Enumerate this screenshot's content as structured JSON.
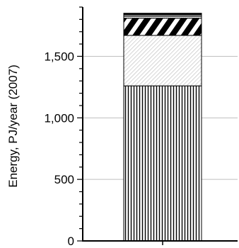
{
  "chart_data": {
    "type": "bar",
    "stacked": true,
    "categories": [
      ""
    ],
    "ylabel": "Energy, PJ/year (2007)",
    "ylim": [
      0,
      1900
    ],
    "y_ticks": [
      0,
      500,
      1000,
      1500
    ],
    "y_tick_labels": [
      "0",
      "500",
      "1,000",
      "1,500"
    ],
    "grid": "horizontal",
    "legend": "none",
    "series": [
      {
        "values": [
          1260
        ],
        "pattern": "vertical-lines"
      },
      {
        "values": [
          410
        ],
        "pattern": "fine-diagonal-hatch"
      },
      {
        "values": [
          140
        ],
        "pattern": "bold-diagonal-stripes"
      },
      {
        "values": [
          15
        ],
        "pattern": "dots"
      },
      {
        "values": [
          15
        ],
        "pattern": "solid-gray"
      },
      {
        "values": [
          10
        ],
        "pattern": "solid-black"
      }
    ],
    "colors": {
      "ink": "#000000",
      "grid": "#bfbfbf",
      "light": "#cccccc",
      "gray": "#888888"
    }
  }
}
